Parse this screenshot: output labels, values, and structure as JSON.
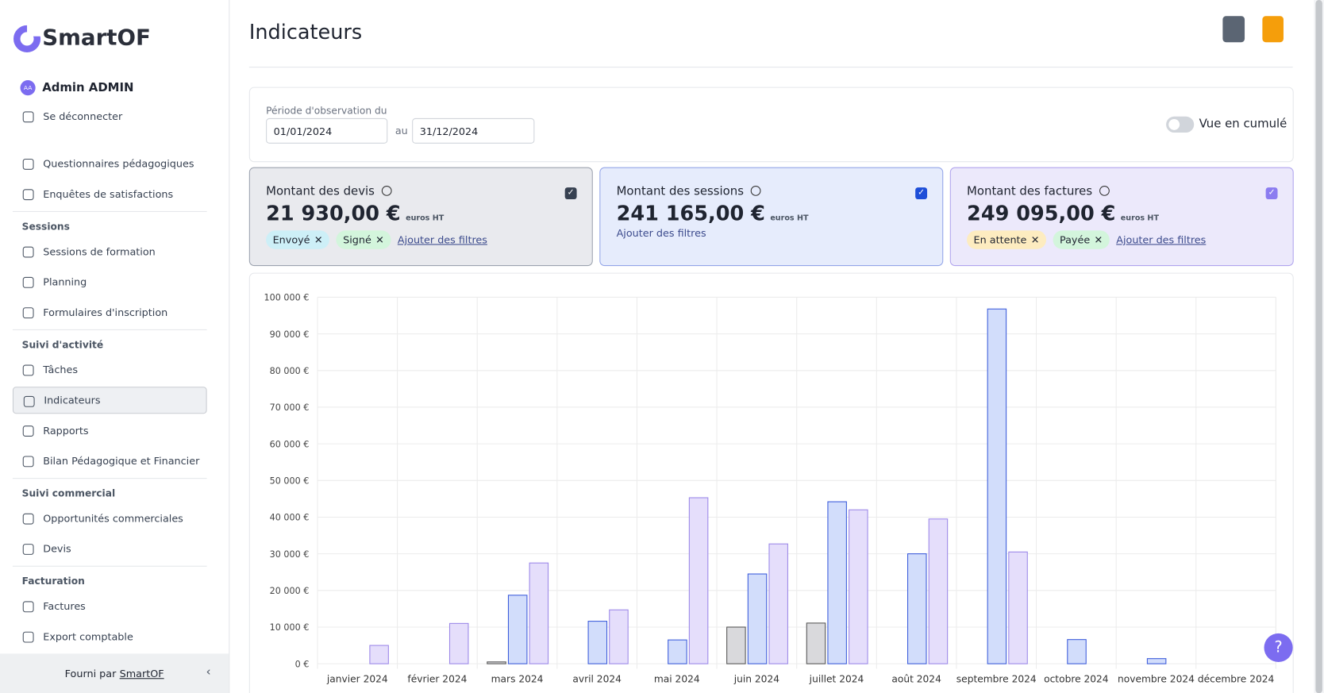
{
  "sidebar": {
    "brand": "SmartOF",
    "user": {
      "initials": "AA",
      "name": "Admin ADMIN"
    },
    "logout": "Se déconnecter",
    "menu": [
      {
        "items": [
          "Questionnaires pédagogiques",
          "Enquêtes de satisfactions"
        ]
      },
      {
        "title": "Sessions",
        "items": [
          "Sessions de formation",
          "Planning",
          "Formulaires d'inscription"
        ]
      },
      {
        "title": "Suivi d'activité",
        "items": [
          "Tâches",
          "Indicateurs",
          "Rapports",
          "Bilan Pédagogique et Financier"
        ]
      },
      {
        "title": "Suivi commercial",
        "items": [
          "Opportunités commerciales",
          "Devis"
        ]
      },
      {
        "title": "Facturation",
        "items": [
          "Factures",
          "Export comptable"
        ]
      }
    ],
    "footer": {
      "prefix": "Fourni par",
      "link": "SmartOF"
    }
  },
  "header": {
    "title": "Indicateurs"
  },
  "period": {
    "label": "Période d'observation du",
    "start": "01/01/2024",
    "separator": "au",
    "end": "31/12/2024",
    "toggle": "Vue en cumulé"
  },
  "cards": [
    {
      "amount": "21 930,00 €",
      "unit": "euros HT",
      "filters": [
        "Envoyé",
        "Signé"
      ],
      "add": "Ajouter des filtres"
    },
    {
      "amount": "241 165,00 €",
      "unit": "euros HT",
      "filters": [],
      "add": "Ajouter des filtres"
    },
    {
      "amount": "249 095,00 €",
      "unit": "euros HT",
      "filters": [
        "En attente",
        "Payée"
      ],
      "add": "Ajouter des filtres"
    }
  ],
  "chart_data": {
    "type": "bar",
    "categories": [
      "janvier 2024",
      "février 2024",
      "mars 2024",
      "avril 2024",
      "mai 2024",
      "juin 2024",
      "juillet 2024",
      "août 2024",
      "septembre 2024",
      "octobre 2024",
      "novembre 2024",
      "décembre 2024"
    ],
    "series": [
      {
        "name": "Montant des devis",
        "color": "#d9d9dc",
        "values": [
          0,
          0,
          500,
          0,
          0,
          10000,
          11100,
          0,
          0,
          0,
          0,
          0
        ]
      },
      {
        "name": "Montant des sessions",
        "color": "#d2ddfb",
        "values": [
          0,
          0,
          18700,
          11600,
          6500,
          24500,
          44200,
          30000,
          96800,
          6600,
          1400,
          0
        ]
      },
      {
        "name": "Montant des factures",
        "color": "#e5defb",
        "values": [
          5000,
          11000,
          27500,
          14700,
          45300,
          32700,
          42000,
          39500,
          30500,
          0,
          0,
          0
        ]
      }
    ],
    "ylim": [
      0,
      100000
    ],
    "yticks": [
      {
        "value": 0,
        "label": "0 €"
      },
      {
        "value": 10000,
        "label": "10 000 €"
      },
      {
        "value": 20000,
        "label": "20 000 €"
      },
      {
        "value": 30000,
        "label": "30 000 €"
      },
      {
        "value": 40000,
        "label": "40 000 €"
      },
      {
        "value": 50000,
        "label": "50 000 €"
      },
      {
        "value": 60000,
        "label": "60 000 €"
      },
      {
        "value": 70000,
        "label": "70 000 €"
      },
      {
        "value": 80000,
        "label": "80 000 €"
      },
      {
        "value": 90000,
        "label": "90 000 €"
      },
      {
        "value": 100000,
        "label": "100 000 €"
      }
    ],
    "grid": true
  }
}
